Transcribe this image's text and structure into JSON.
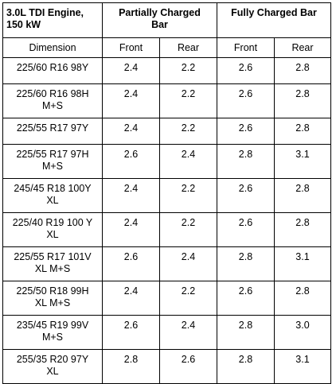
{
  "table": {
    "corner_label_line1": "3.0L TDI Engine,",
    "corner_label_line2": "150 kW",
    "group_partial_line1": "Partially Charged",
    "group_partial_line2": "Bar",
    "group_full": "Fully Charged Bar",
    "sub_dimension": "Dimension",
    "sub_front_1": "Front",
    "sub_rear_1": "Rear",
    "sub_front_2": "Front",
    "sub_rear_2": "Rear",
    "rows": [
      {
        "dim1": "225/60 R16 98Y",
        "dim2": "",
        "pf": "2.4",
        "pr": "2.2",
        "ff": "2.6",
        "fr": "2.8"
      },
      {
        "dim1": "225/60 R16 98H",
        "dim2": "M+S",
        "pf": "2.4",
        "pr": "2.2",
        "ff": "2.6",
        "fr": "2.8"
      },
      {
        "dim1": "225/55 R17 97Y",
        "dim2": "",
        "pf": "2.4",
        "pr": "2.2",
        "ff": "2.6",
        "fr": "2.8"
      },
      {
        "dim1": "225/55 R17 97H",
        "dim2": "M+S",
        "pf": "2.6",
        "pr": "2.4",
        "ff": "2.8",
        "fr": "3.1"
      },
      {
        "dim1": "245/45 R18 100Y",
        "dim2": "XL",
        "pf": "2.4",
        "pr": "2.2",
        "ff": "2.6",
        "fr": "2.8"
      },
      {
        "dim1": "225/40 R19 100 Y",
        "dim2": "XL",
        "pf": "2.4",
        "pr": "2.2",
        "ff": "2.6",
        "fr": "2.8"
      },
      {
        "dim1": "225/55 R17 101V",
        "dim2": "XL M+S",
        "pf": "2.6",
        "pr": "2.4",
        "ff": "2.8",
        "fr": "3.1"
      },
      {
        "dim1": "225/50 R18 99H",
        "dim2": "XL M+S",
        "pf": "2.4",
        "pr": "2.2",
        "ff": "2.6",
        "fr": "2.8"
      },
      {
        "dim1": "235/45 R19 99V",
        "dim2": "M+S",
        "pf": "2.6",
        "pr": "2.4",
        "ff": "2.8",
        "fr": "3.0"
      },
      {
        "dim1": "255/35 R20 97Y",
        "dim2": "XL",
        "pf": "2.8",
        "pr": "2.6",
        "ff": "2.8",
        "fr": "3.1"
      }
    ]
  }
}
